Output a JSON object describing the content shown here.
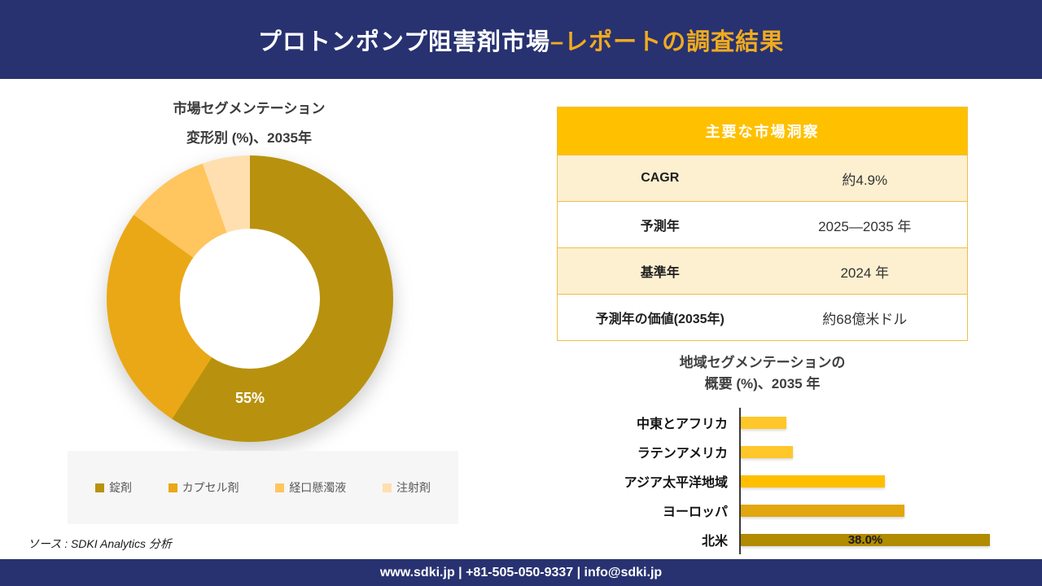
{
  "header": {
    "title_white": "プロトンポンプ阻害剤市場 ",
    "title_gold": "–レポートの調査結果"
  },
  "donut_section": {
    "title_line1": "市場セグメンテーション",
    "title_line2": "変形別 (%)、2035年"
  },
  "insights_table": {
    "header": "主要な市場洞察",
    "rows": [
      {
        "label": "CAGR",
        "value": "約4.9%"
      },
      {
        "label": "予測年",
        "value": "2025—2035 年"
      },
      {
        "label": "基準年",
        "value": "2024 年"
      },
      {
        "label": "予測年の価値(2035年)",
        "value": "約68億米ドル"
      }
    ]
  },
  "regional_section": {
    "title_line1": "地域セグメンテーションの",
    "title_line2": "概要 (%)、2035 年"
  },
  "source": "ソース : SDKI Analytics 分析",
  "footer": "www.sdki.jp | +81-505-050-9337 | info@sdki.jp",
  "colors": {
    "navy": "#283271",
    "header_gold_text": "#f0ab1e",
    "table_header_gold": "#ffc000",
    "table_row_cream": "#fdf0d0",
    "table_border_gold": "#eec04a",
    "legend_text": "#595959"
  },
  "chart_data": [
    {
      "type": "pie",
      "donut": true,
      "title": "市場セグメンテーション 変形別 (%)、2035年",
      "labels": [
        "錠剤",
        "カプセル剤",
        "経口懸濁液",
        "注射剤"
      ],
      "values": [
        55,
        24,
        9,
        5
      ],
      "colors": [
        "#b8920e",
        "#eaa816",
        "#ffc55e",
        "#ffdfb0"
      ],
      "data_label": "55%",
      "legend_position": "bottom",
      "start_angle_deg": 0
    },
    {
      "type": "bar",
      "orientation": "horizontal",
      "title": "地域セグメンテーションの概要 (%)、2035 年",
      "categories": [
        "中東とアフリカ",
        "ラテンアメリカ",
        "アジア太平洋地域",
        "ヨーロッパ",
        "北米"
      ],
      "values": [
        7,
        8,
        22,
        25,
        38
      ],
      "colors": [
        "#ffc72a",
        "#ffc72a",
        "#ffbf00",
        "#e2a70f",
        "#b18b00"
      ],
      "data_label": "38.0%",
      "data_label_series_index": 4,
      "xlim": [
        0,
        42
      ],
      "grid": false
    }
  ]
}
